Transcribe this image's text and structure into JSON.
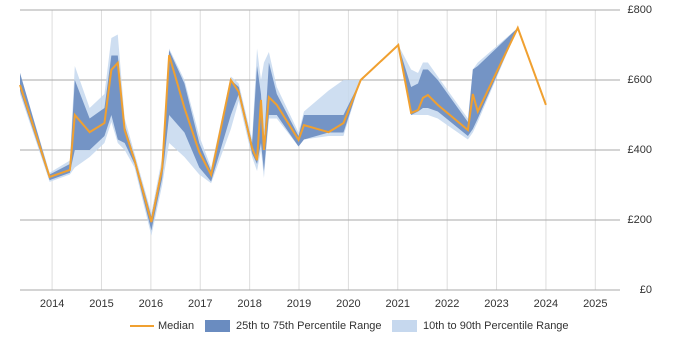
{
  "chart_data": {
    "type": "line",
    "x": [
      2013.35,
      2013.95,
      2014.36,
      2014.46,
      2014.76,
      2015.06,
      2015.2,
      2015.33,
      2015.47,
      2015.67,
      2016.01,
      2016.23,
      2016.37,
      2016.68,
      2016.98,
      2017.22,
      2017.62,
      2017.78,
      2018.05,
      2018.15,
      2018.23,
      2018.29,
      2018.39,
      2018.55,
      2018.99,
      2019.1,
      2019.6,
      2019.9,
      2020.25,
      2021.01,
      2021.27,
      2021.41,
      2021.51,
      2021.61,
      2021.81,
      2022.42,
      2022.52,
      2022.62,
      2023.43,
      2024.0
    ],
    "series": [
      {
        "name": "Median",
        "color": "#f0a030",
        "values": [
          586,
          323,
          343,
          500,
          451,
          477,
          629,
          649,
          457,
          371,
          194,
          349,
          671,
          520,
          394,
          329,
          600,
          566,
          406,
          371,
          543,
          400,
          551,
          529,
          429,
          471,
          451,
          477,
          600,
          700,
          506,
          514,
          549,
          557,
          529,
          457,
          560,
          510,
          749,
          529
        ]
      }
    ],
    "bands": [
      {
        "name": "10th to 90th Percentile Range",
        "color": "#c6d8ee",
        "low": [
          560,
          309,
          330,
          350,
          380,
          420,
          480,
          420,
          400,
          350,
          155,
          300,
          420,
          380,
          330,
          305,
          460,
          540,
          380,
          340,
          400,
          320,
          490,
          490,
          410,
          430,
          440,
          440,
          600,
          700,
          500,
          500,
          500,
          500,
          490,
          430,
          450,
          480,
          749,
          null
        ],
        "high": [
          620,
          335,
          370,
          640,
          520,
          560,
          720,
          730,
          490,
          390,
          220,
          380,
          690,
          600,
          440,
          350,
          610,
          590,
          430,
          690,
          600,
          650,
          680,
          580,
          450,
          510,
          570,
          600,
          600,
          700,
          630,
          620,
          650,
          650,
          610,
          490,
          630,
          650,
          749,
          null
        ]
      },
      {
        "name": "25th to 75th Percentile Range",
        "color": "#6a8cc0",
        "low": [
          570,
          314,
          335,
          400,
          400,
          440,
          500,
          430,
          420,
          360,
          170,
          320,
          500,
          450,
          350,
          310,
          500,
          560,
          390,
          360,
          420,
          340,
          500,
          500,
          410,
          430,
          450,
          450,
          600,
          700,
          500,
          510,
          520,
          520,
          510,
          440,
          460,
          490,
          749,
          null
        ],
        "high": [
          620,
          330,
          360,
          600,
          490,
          520,
          670,
          670,
          470,
          380,
          210,
          360,
          685,
          590,
          420,
          340,
          600,
          580,
          420,
          640,
          560,
          420,
          650,
          560,
          440,
          500,
          500,
          500,
          600,
          700,
          580,
          590,
          630,
          630,
          600,
          480,
          630,
          640,
          749,
          null
        ]
      }
    ],
    "xlim": [
      2013.35,
      2025.5
    ],
    "xticks": [
      2014,
      2015,
      2016,
      2017,
      2018,
      2019,
      2020,
      2021,
      2022,
      2023,
      2024,
      2025
    ],
    "ylim": [
      0,
      800
    ],
    "yticks": [
      {
        "value": 0,
        "label": "£0"
      },
      {
        "value": 200,
        "label": "£200"
      },
      {
        "value": 400,
        "label": "£400"
      },
      {
        "value": 600,
        "label": "£600"
      },
      {
        "value": 800,
        "label": "£800"
      }
    ],
    "grid": true,
    "legend": "bottom"
  }
}
